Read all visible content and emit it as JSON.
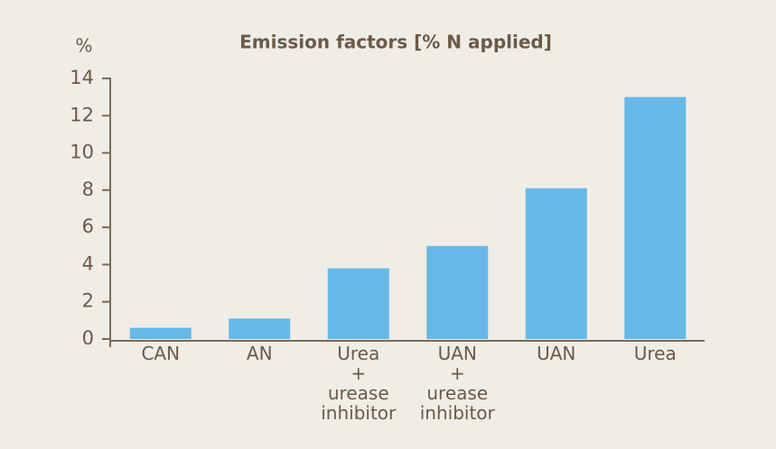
{
  "chart_data": {
    "type": "bar",
    "title": "Emission factors [% N applied]",
    "y_label": "%",
    "categories": [
      "CAN",
      "AN",
      "Urea\n+\nurease\ninhibitor",
      "UAN\n+\nurease\ninhibitor",
      "UAN",
      "Urea"
    ],
    "values": [
      0.6,
      1.1,
      3.8,
      5.0,
      8.1,
      13
    ],
    "color": "#67b8e6",
    "ylim": [
      0,
      14
    ],
    "yticks": [
      0,
      2,
      4,
      6,
      8,
      10,
      12,
      14
    ],
    "grid": false
  }
}
